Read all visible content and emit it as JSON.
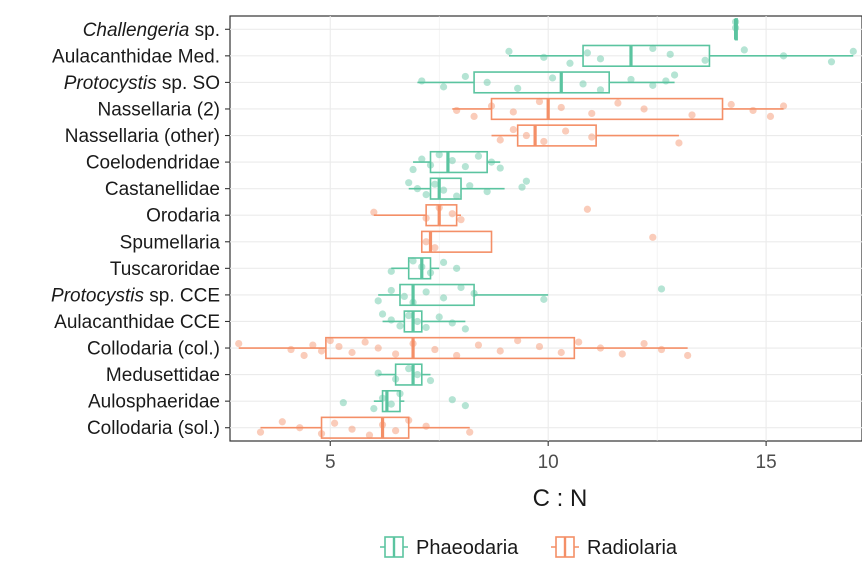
{
  "chart_data": {
    "type": "boxplot",
    "title": "",
    "xlabel": "C : N",
    "ylabel": "",
    "xlim": [
      2.7,
      17.2
    ],
    "x_ticks": [
      5,
      10,
      15
    ],
    "grid": true,
    "orientation": "horizontal",
    "legend": {
      "position": "bottom",
      "entries": [
        {
          "name": "Phaeodaria",
          "color": "#5bc4a0"
        },
        {
          "name": "Radiolaria",
          "color": "#f48f67"
        }
      ]
    },
    "categories": [
      {
        "name": "Challengeria sp.",
        "italic": "Challengeria",
        "rest": " sp.",
        "group": "Phaeodaria",
        "q1": 14.3,
        "median": 14.3,
        "q3": 14.3,
        "wmin": 14.3,
        "wmax": 14.3,
        "points": [
          14.3,
          14.3
        ]
      },
      {
        "name": "Aulacanthidae Med.",
        "group": "Phaeodaria",
        "q1": 10.8,
        "median": 11.9,
        "q3": 13.7,
        "wmin": 9.1,
        "wmax": 17.0,
        "points": [
          9.1,
          9.9,
          10.5,
          10.9,
          11.2,
          12.4,
          12.8,
          13.6,
          14.5,
          15.4,
          16.5,
          17.0
        ]
      },
      {
        "name": "Protocystis sp. SO",
        "italic": "Protocystis",
        "rest": " sp. SO",
        "group": "Phaeodaria",
        "q1": 8.3,
        "median": 10.3,
        "q3": 11.4,
        "wmin": 7.0,
        "wmax": 12.9,
        "points": [
          7.1,
          7.6,
          8.1,
          8.6,
          9.3,
          10.1,
          10.8,
          11.2,
          11.9,
          12.4,
          12.9,
          12.7
        ]
      },
      {
        "name": "Nassellaria (2)",
        "group": "Radiolaria",
        "q1": 8.7,
        "median": 10.0,
        "q3": 14.0,
        "wmin": 7.8,
        "wmax": 15.4,
        "points": [
          7.9,
          8.3,
          8.7,
          9.2,
          9.8,
          10.3,
          11.0,
          11.6,
          12.2,
          13.3,
          14.2,
          14.7,
          15.1,
          15.4
        ]
      },
      {
        "name": "Nassellaria (other)",
        "group": "Radiolaria",
        "q1": 9.3,
        "median": 9.7,
        "q3": 11.1,
        "wmin": 8.7,
        "wmax": 13.0,
        "points": [
          8.9,
          9.2,
          9.5,
          9.9,
          10.4,
          11.0,
          13.0
        ]
      },
      {
        "name": "Coelodendridae",
        "group": "Phaeodaria",
        "q1": 7.3,
        "median": 7.7,
        "q3": 8.6,
        "wmin": 6.9,
        "wmax": 8.9,
        "points": [
          6.9,
          7.1,
          7.3,
          7.5,
          7.8,
          8.1,
          8.4,
          8.7,
          8.9
        ]
      },
      {
        "name": "Castanellidae",
        "group": "Phaeodaria",
        "q1": 7.3,
        "median": 7.5,
        "q3": 8.0,
        "wmin": 6.8,
        "wmax": 9.0,
        "points": [
          6.8,
          7.0,
          7.2,
          7.4,
          7.6,
          7.9,
          8.2,
          8.6,
          9.5,
          9.4
        ]
      },
      {
        "name": "Orodaria",
        "group": "Radiolaria",
        "q1": 7.2,
        "median": 7.5,
        "q3": 7.9,
        "wmin": 6.0,
        "wmax": 8.0,
        "points": [
          6.0,
          7.2,
          7.5,
          7.8,
          8.0,
          10.9
        ]
      },
      {
        "name": "Spumellaria",
        "group": "Radiolaria",
        "q1": 7.1,
        "median": 7.3,
        "q3": 8.7,
        "wmin": 7.1,
        "wmax": 8.7,
        "points": [
          7.2,
          7.4,
          12.4
        ]
      },
      {
        "name": "Tuscaroridae",
        "group": "Phaeodaria",
        "q1": 6.8,
        "median": 7.1,
        "q3": 7.3,
        "wmin": 6.4,
        "wmax": 7.5,
        "points": [
          6.4,
          6.9,
          7.1,
          7.3,
          7.6,
          7.9
        ]
      },
      {
        "name": "Protocystis sp. CCE",
        "italic": "Protocystis",
        "rest": " sp. CCE",
        "group": "Phaeodaria",
        "q1": 6.6,
        "median": 6.9,
        "q3": 8.3,
        "wmin": 6.1,
        "wmax": 10.0,
        "points": [
          6.1,
          6.4,
          6.7,
          6.9,
          7.2,
          7.6,
          8.0,
          8.3,
          9.9,
          12.6
        ]
      },
      {
        "name": "Aulacanthidae CCE",
        "group": "Phaeodaria",
        "q1": 6.7,
        "median": 6.9,
        "q3": 7.1,
        "wmin": 6.2,
        "wmax": 8.1,
        "points": [
          6.2,
          6.4,
          6.6,
          6.8,
          7.0,
          7.2,
          7.5,
          7.8,
          8.1
        ]
      },
      {
        "name": "Collodaria (col.)",
        "group": "Radiolaria",
        "q1": 4.9,
        "median": 6.9,
        "q3": 10.6,
        "wmin": 2.9,
        "wmax": 13.2,
        "points": [
          2.9,
          4.1,
          4.4,
          4.6,
          4.8,
          5.0,
          5.2,
          5.5,
          5.8,
          6.1,
          6.5,
          6.9,
          7.4,
          7.9,
          8.4,
          8.9,
          9.3,
          9.8,
          10.3,
          10.7,
          11.2,
          11.7,
          12.2,
          12.6,
          13.2
        ]
      },
      {
        "name": "Medusettidae",
        "group": "Phaeodaria",
        "q1": 6.5,
        "median": 6.9,
        "q3": 7.1,
        "wmin": 6.1,
        "wmax": 7.3,
        "points": [
          6.1,
          6.5,
          6.8,
          7.0,
          7.3
        ]
      },
      {
        "name": "Aulosphaeridae",
        "group": "Phaeodaria",
        "q1": 6.2,
        "median": 6.3,
        "q3": 6.6,
        "wmin": 6.0,
        "wmax": 6.7,
        "points": [
          5.3,
          6.0,
          6.2,
          6.4,
          6.6,
          7.8,
          8.1
        ]
      },
      {
        "name": "Collodaria (sol.)",
        "group": "Radiolaria",
        "q1": 4.8,
        "median": 6.2,
        "q3": 6.8,
        "wmin": 3.4,
        "wmax": 8.2,
        "points": [
          3.4,
          3.9,
          4.3,
          4.8,
          5.1,
          5.5,
          5.9,
          6.2,
          6.5,
          6.8,
          7.2,
          8.2
        ]
      }
    ]
  }
}
